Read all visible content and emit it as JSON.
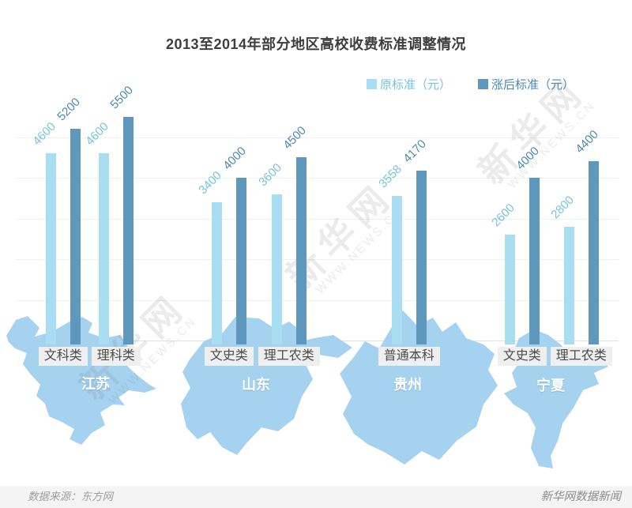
{
  "title": "2013至2014年部分地区高校收费标准调整情况",
  "legend": [
    {
      "label": "原标准（元）",
      "color": "#a9def2",
      "text_color": "#76c4e0"
    },
    {
      "label": "涨后标准（元）",
      "color": "#5e99bd",
      "text_color": "#4c8ab1"
    }
  ],
  "watermark": {
    "cn": "新华网",
    "en": "WWW.NEWS.CN"
  },
  "footer": {
    "source": "数据来源：东方网",
    "credit": "新华网数据新闻"
  },
  "chart_data": {
    "type": "bar",
    "title": "2013至2014年部分地区高校收费标准调整情况",
    "unit": "元",
    "series_names": [
      "原标准（元）",
      "涨后标准（元）"
    ],
    "ylim": [
      0,
      5500
    ],
    "grid_step": 1000,
    "grid_max": 5000,
    "grid_on": true,
    "legend_position": "top-right",
    "map_color": "#a5d2ee",
    "groups": [
      {
        "region": "江苏",
        "categories": [
          {
            "label": "文科类",
            "old": 4600,
            "new": 5200
          },
          {
            "label": "理科类",
            "old": 4600,
            "new": 5500
          }
        ]
      },
      {
        "region": "山东",
        "categories": [
          {
            "label": "文史类",
            "old": 3400,
            "new": 4000
          },
          {
            "label": "理工农类",
            "old": 3600,
            "new": 4500
          }
        ]
      },
      {
        "region": "贵州",
        "categories": [
          {
            "label": "普通本科",
            "old": 3558,
            "new": 4170
          }
        ]
      },
      {
        "region": "宁夏",
        "categories": [
          {
            "label": "文史类",
            "old": 2600,
            "new": 4000
          },
          {
            "label": "理工农类",
            "old": 2800,
            "new": 4400
          }
        ]
      }
    ]
  }
}
